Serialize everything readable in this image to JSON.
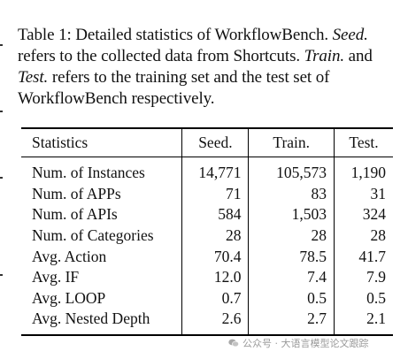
{
  "caption": {
    "lead": "Table 1: Detailed statistics of WorkflowBench.",
    "seed_term": "Seed.",
    "seed_text": " refers to the collected data from Shortcuts.",
    "train_term": "Train.",
    "and_text": " and ",
    "test_term": "Test.",
    "rest_text": " refers to the training set and the test set of WorkflowBench respectively."
  },
  "table": {
    "headers": [
      "Statistics",
      "Seed.",
      "Train.",
      "Test."
    ],
    "rows": [
      {
        "label": "Num. of Instances",
        "seed": "14,771",
        "train": "105,573",
        "test": "1,190"
      },
      {
        "label": "Num. of APPs",
        "seed": "71",
        "train": "83",
        "test": "31"
      },
      {
        "label": "Num. of APIs",
        "seed": "584",
        "train": "1,503",
        "test": "324"
      },
      {
        "label": "Num. of Categories",
        "seed": "28",
        "train": "28",
        "test": "28"
      },
      {
        "label": "Avg. Action",
        "seed": "70.4",
        "train": "78.5",
        "test": "41.7"
      },
      {
        "label": "Avg. IF",
        "seed": "12.0",
        "train": "7.4",
        "test": "7.9"
      },
      {
        "label": "Avg. LOOP",
        "seed": "0.7",
        "train": "0.5",
        "test": "0.5"
      },
      {
        "label": "Avg. Nested Depth",
        "seed": "2.6",
        "train": "2.7",
        "test": "2.1"
      }
    ]
  },
  "watermark": {
    "text": "公众号 · 大语言模型论文跟踪",
    "icon": "wechat-icon"
  }
}
